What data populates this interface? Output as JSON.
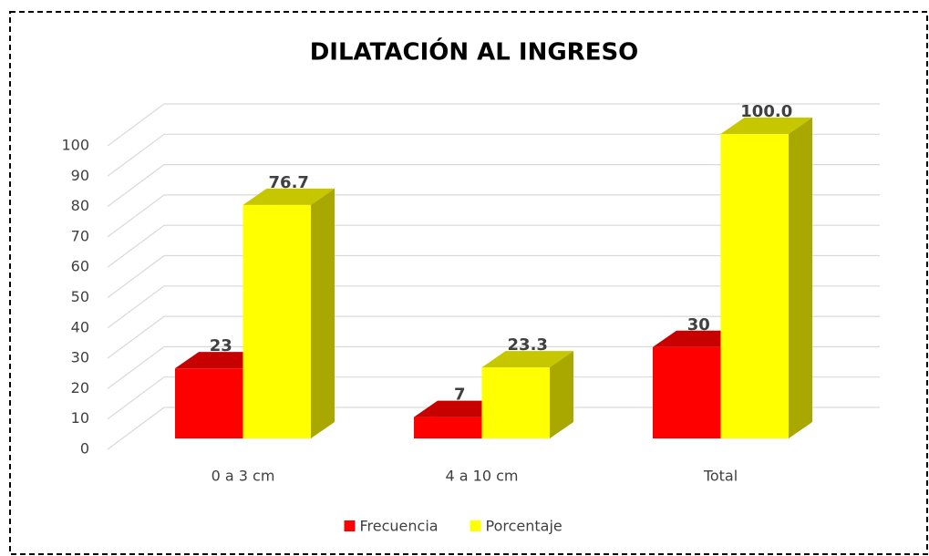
{
  "chart_data": {
    "type": "bar3d",
    "title": "DILATACIÓN AL INGRESO",
    "categories": [
      "0 a 3 cm",
      "4 a 10 cm",
      "Total"
    ],
    "series": [
      {
        "name": "Frecuencia",
        "color": "#ff0000",
        "values": [
          23,
          7,
          30
        ]
      },
      {
        "name": "Porcentaje",
        "color": "#ffff00",
        "values": [
          76.7,
          23.3,
          100.0
        ],
        "value_labels": [
          "76.7",
          "23.3",
          "100.0"
        ]
      }
    ],
    "ylim": [
      0,
      100
    ],
    "yticks": [
      0,
      10,
      20,
      30,
      40,
      50,
      60,
      70,
      80,
      90,
      100
    ],
    "grid": true,
    "legend": "bottom"
  }
}
